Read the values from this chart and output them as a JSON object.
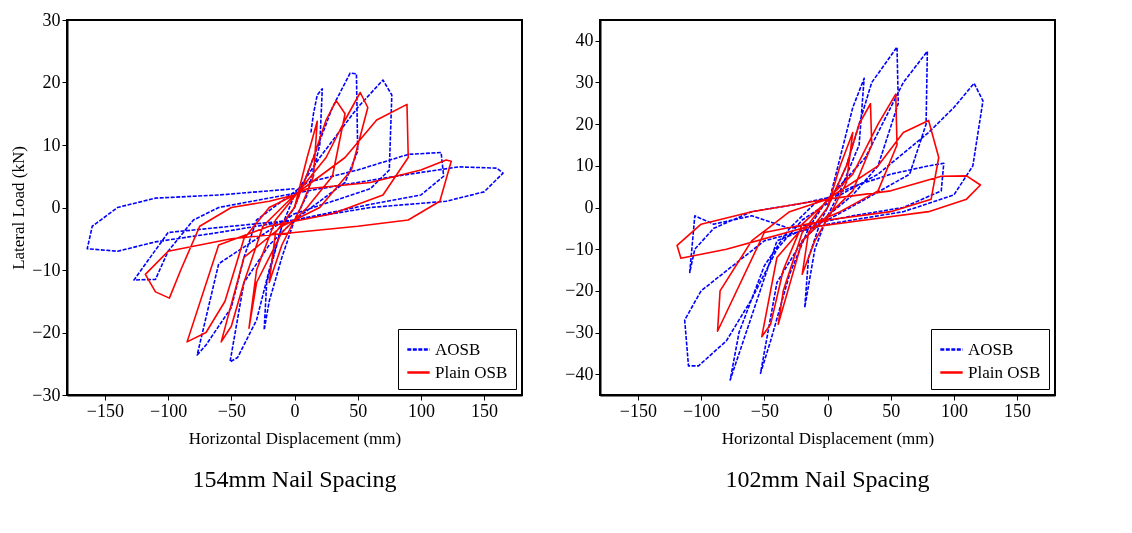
{
  "chart_data": [
    {
      "type": "line",
      "title": "154mm Nail Spacing",
      "xlabel": "Horizontal Displacement (mm)",
      "ylabel": "Lateral Load (kN)",
      "xlim": [
        -180,
        180
      ],
      "ylim": [
        -30,
        30
      ],
      "xticks": [
        -150,
        -100,
        -50,
        0,
        50,
        100,
        150
      ],
      "yticks": [
        -30,
        -20,
        -10,
        0,
        10,
        20,
        30
      ],
      "grid": false,
      "legend": "bottom right",
      "series": [
        {
          "name": "AOSB",
          "color": "#0000ff",
          "line_style": "dashed",
          "x": [
            13,
            15,
            18,
            22,
            20,
            10,
            0,
            -10,
            -20,
            -24,
            -22,
            -10,
            0,
            15,
            30,
            44,
            49,
            50,
            40,
            20,
            0,
            -20,
            -40,
            -51,
            -45,
            -30,
            -20,
            -10,
            0,
            20,
            50,
            70,
            77,
            75,
            60,
            30,
            0,
            -30,
            -60,
            -77,
            -70,
            -50,
            -40,
            -30,
            -10,
            10,
            50,
            90,
            116,
            118,
            100,
            60,
            0,
            -50,
            -100,
            -127,
            -110,
            -100,
            -80,
            -60,
            -20,
            20,
            80,
            130,
            160,
            165,
            150,
            120,
            60,
            0,
            -60,
            -110,
            -140,
            -164,
            -160,
            -140,
            -110,
            -60,
            0
          ],
          "values": [
            12,
            15,
            18,
            19,
            10,
            2,
            -2,
            -8,
            -15,
            -19.6,
            -12,
            -3,
            0,
            8,
            16,
            21.5,
            21.4,
            9,
            4,
            1,
            -2,
            -6,
            -12,
            -24.7,
            -24,
            -18,
            -10,
            -3,
            2,
            8,
            16,
            20.4,
            18,
            6,
            3,
            1,
            -1,
            -5,
            -9,
            -23.6,
            -22,
            -16,
            -8,
            -2,
            1,
            4,
            6,
            8.5,
            8.8,
            5,
            2,
            0.5,
            -2,
            -3,
            -4,
            -11.6,
            -11.5,
            -7,
            -2,
            0,
            1.5,
            3,
            5,
            6.5,
            6.3,
            5.5,
            2.5,
            1,
            0,
            -2,
            -4,
            -5.5,
            -7,
            -6.6,
            -3,
            0,
            1.5,
            2,
            3
          ]
        },
        {
          "name": "Plain OSB",
          "color": "#ff0000",
          "line_style": "solid",
          "x": [
            0,
            10,
            18,
            15,
            5,
            -10,
            -20,
            -15,
            0,
            15,
            25,
            33,
            40,
            30,
            10,
            -10,
            -30,
            -36,
            -30,
            -15,
            5,
            25,
            40,
            52,
            58,
            45,
            20,
            -10,
            -40,
            -58,
            -50,
            -40,
            -25,
            0,
            40,
            65,
            89,
            90,
            70,
            30,
            -20,
            -60,
            -85,
            -70,
            -55,
            -40,
            -20,
            10,
            60,
            100,
            120,
            124,
            115,
            90,
            50,
            0,
            -50,
            -100,
            -118,
            -110,
            -99,
            -90,
            -75,
            -50,
            -20,
            0
          ],
          "values": [
            0,
            8,
            13.8,
            5,
            0,
            -6,
            -12,
            -4,
            0,
            8,
            14,
            17.1,
            15,
            5,
            0,
            -4,
            -12,
            -19.3,
            -10,
            -2,
            3,
            8,
            14,
            18.4,
            16,
            6,
            0,
            -3,
            -8,
            -21.5,
            -19,
            -12,
            -3,
            2,
            8,
            14,
            16.5,
            8,
            2,
            -1,
            -3,
            -6,
            -21.5,
            -20,
            -15,
            -5,
            0,
            3,
            4,
            6,
            7.6,
            7.4,
            1,
            -2,
            -3,
            -4,
            -5,
            -7,
            -10.7,
            -13.5,
            -14.5,
            -10,
            -3,
            0,
            1,
            2
          ]
        }
      ]
    },
    {
      "type": "line",
      "title": "102mm Nail Spacing",
      "xlabel": "Horizontal Displacement (mm)",
      "xlim": [
        -180,
        180
      ],
      "ylim": [
        -45,
        45
      ],
      "xticks": [
        -150,
        -100,
        -50,
        0,
        50,
        100,
        150
      ],
      "yticks": [
        -40,
        -30,
        -20,
        -10,
        0,
        10,
        20,
        30,
        40
      ],
      "grid": false,
      "legend": "bottom right",
      "series": [
        {
          "name": "AOSB",
          "color": "#0000ff",
          "line_style": "dashed",
          "x": [
            0,
            10,
            20,
            29,
            25,
            10,
            0,
            -10,
            -18,
            -15,
            -5,
            0,
            15,
            35,
            55,
            56,
            40,
            20,
            0,
            -20,
            -40,
            -53,
            -45,
            -30,
            -15,
            0,
            30,
            60,
            79,
            78,
            65,
            30,
            0,
            -40,
            -77,
            -70,
            -50,
            -30,
            -10,
            20,
            50,
            80,
            92,
            90,
            60,
            20,
            -30,
            -60,
            -90,
            -105,
            -109,
            -105,
            -90,
            -60,
            -20,
            10,
            40,
            80,
            100,
            116,
            123,
            115,
            100,
            60,
            0,
            -50,
            -100,
            -113,
            -110,
            -102,
            -80,
            -60,
            -40,
            -20,
            0
          ],
          "values": [
            0,
            12,
            24,
            31,
            15,
            4,
            -2,
            -10,
            -24,
            -12,
            -3,
            0,
            10,
            30,
            38.5,
            25,
            10,
            3,
            -2,
            -8,
            -18,
            -39.8,
            -32,
            -16,
            -5,
            2,
            12,
            30,
            37.5,
            20,
            8,
            2,
            -3,
            -8,
            -41.4,
            -30,
            -14,
            -5,
            1,
            5,
            8,
            10,
            10.6,
            4,
            0,
            -2,
            -5,
            -2,
            -4,
            -2,
            -15.6,
            -10,
            -5,
            -1,
            1,
            3,
            8,
            18,
            24,
            29.8,
            25.6,
            10,
            3,
            -1,
            -4,
            -8,
            -20,
            -27,
            -38,
            -38,
            -32,
            -22,
            -10,
            -3,
            1
          ]
        },
        {
          "name": "Plain OSB",
          "color": "#ff0000",
          "line_style": "solid",
          "x": [
            0,
            10,
            20,
            15,
            5,
            -10,
            -20,
            -15,
            0,
            15,
            25,
            34,
            35,
            20,
            0,
            -20,
            -39,
            -35,
            -20,
            0,
            20,
            40,
            54,
            55,
            40,
            10,
            -20,
            -40,
            -52,
            -45,
            -35,
            -20,
            5,
            40,
            60,
            80,
            88,
            82,
            50,
            0,
            -50,
            -87,
            -85,
            -60,
            -30,
            0,
            50,
            90,
            110,
            121,
            110,
            80,
            30,
            -20,
            -80,
            -116,
            -119,
            -100,
            -60,
            -20,
            0
          ],
          "values": [
            0,
            10,
            18,
            6,
            0,
            -8,
            -16,
            -6,
            0,
            10,
            20,
            24.9,
            15,
            4,
            -2,
            -8,
            -28,
            -20,
            -6,
            2,
            8,
            20,
            27.2,
            15,
            4,
            -1,
            -5,
            -12,
            -31,
            -28,
            -15,
            -4,
            3,
            10,
            18,
            20.9,
            12,
            2,
            -1,
            -3,
            -6,
            -29.7,
            -20,
            -8,
            -1,
            2,
            4,
            7.5,
            7.6,
            5.4,
            2,
            -1,
            -3,
            -5,
            -10,
            -12.2,
            -9.1,
            -4,
            -1,
            1,
            2
          ]
        }
      ]
    }
  ]
}
